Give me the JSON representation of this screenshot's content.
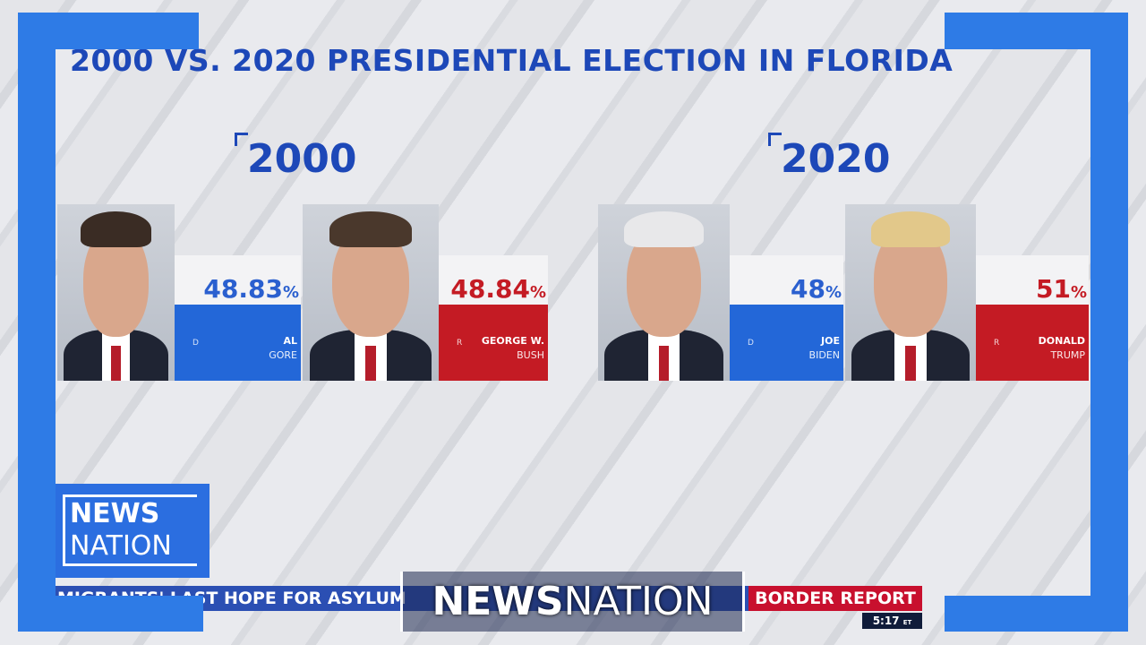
{
  "header": {
    "title": "2000 VS. 2020 PRESIDENTIAL ELECTION IN FLORIDA"
  },
  "elections": [
    {
      "year": "2000",
      "candidates": [
        {
          "party": "D",
          "first": "AL",
          "last": "GORE",
          "percent": "48.83",
          "unit": "%"
        },
        {
          "party": "R",
          "first": "GEORGE W.",
          "last": "BUSH",
          "percent": "48.84",
          "unit": "%"
        }
      ]
    },
    {
      "year": "2020",
      "candidates": [
        {
          "party": "D",
          "first": "JOE",
          "last": "BIDEN",
          "percent": "48",
          "unit": "%"
        },
        {
          "party": "R",
          "first": "DONALD",
          "last": "TRUMP",
          "percent": "51",
          "unit": "%"
        }
      ]
    }
  ],
  "ticker": {
    "text": "MIGRANTS' LAST HOPE FOR ASYLUM",
    "segment": "BORDER REPORT",
    "time": "5:17",
    "zone": "ET"
  },
  "logos": {
    "corner_top": "NEWS",
    "corner_bottom": "NATION",
    "bug_bold": "NEWS",
    "bug_light": "NATION"
  }
}
